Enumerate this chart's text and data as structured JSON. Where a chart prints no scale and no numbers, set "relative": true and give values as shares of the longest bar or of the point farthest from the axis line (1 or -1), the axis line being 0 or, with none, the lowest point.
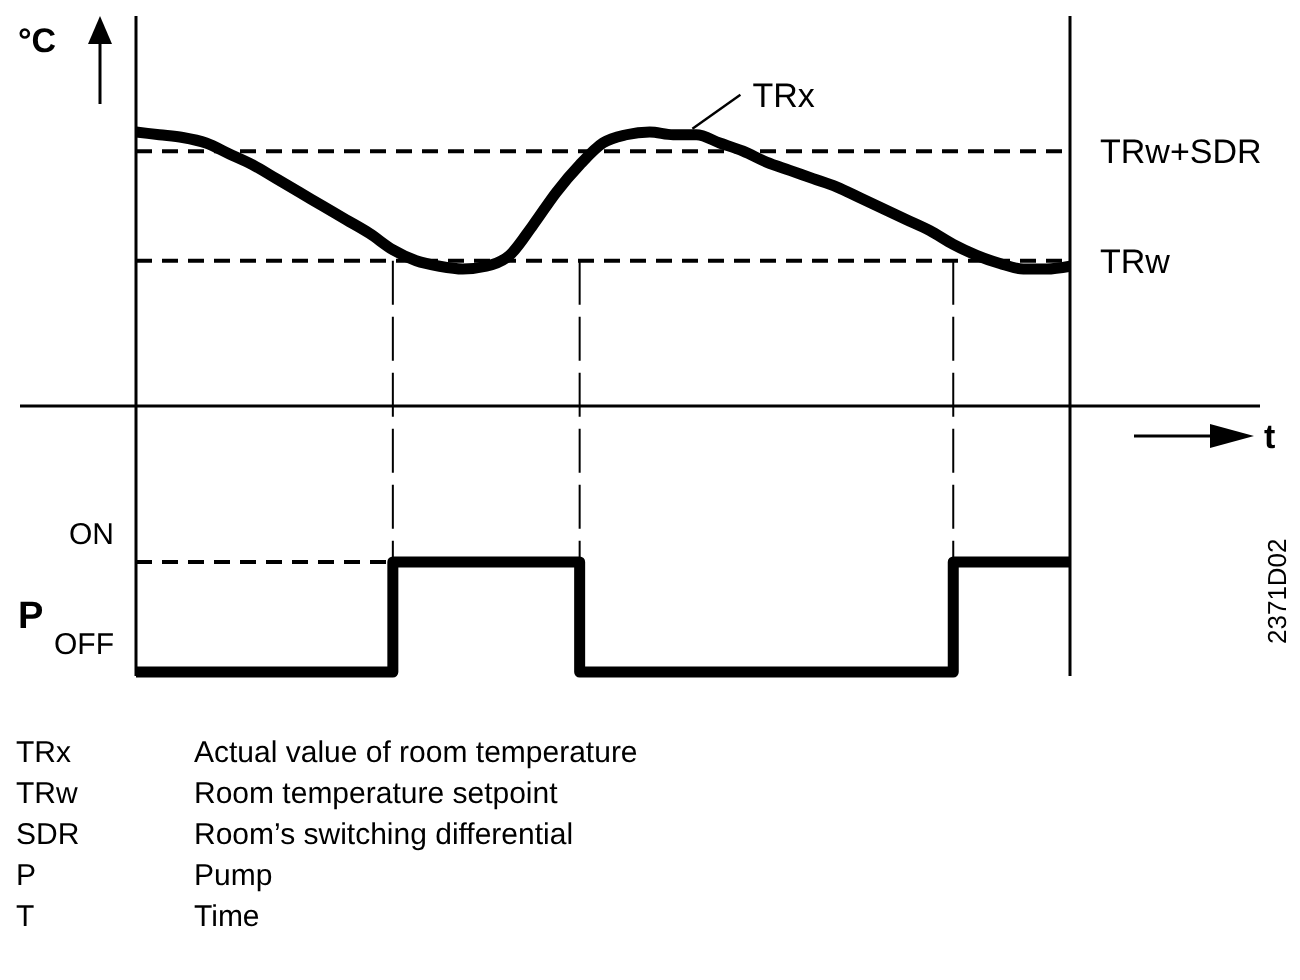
{
  "chart_data": [
    {
      "type": "line",
      "relative": true,
      "xlabel": "t",
      "ylabel": "°C",
      "categories": [
        null,
        null,
        null,
        null,
        null,
        null,
        null,
        null,
        null,
        null,
        null,
        null,
        null,
        null,
        null,
        null,
        null,
        null,
        null,
        null,
        null,
        null,
        null,
        null,
        null,
        null,
        null,
        null,
        null,
        null,
        null,
        null,
        null,
        null,
        null,
        null,
        null,
        null,
        null,
        null,
        null
      ],
      "series": [
        {
          "name": "TRx",
          "color": "#000000",
          "values": [
            1,
            0.99,
            0.98,
            0.96,
            0.92,
            0.88,
            0.83,
            0.78,
            0.73,
            0.68,
            0.63,
            0.57,
            0.53,
            0.51,
            0.5,
            0.51,
            0.55,
            0.66,
            0.78,
            0.88,
            0.96,
            0.99,
            1,
            0.99,
            0.99,
            0.96,
            0.93,
            0.89,
            0.86,
            0.83,
            0.8,
            0.76,
            0.72,
            0.68,
            0.64,
            0.59,
            0.55,
            0.52,
            0.5,
            0.5,
            0.51
          ]
        }
      ],
      "ref_lines": [
        {
          "axis": "y",
          "value": 0.93,
          "label": "TRw+SDR",
          "line_style": "dashed"
        },
        {
          "axis": "y",
          "value": 0.53,
          "label": "TRw",
          "line_style": "dashed"
        }
      ]
    },
    {
      "type": "step",
      "ylabel": "P",
      "relative": true,
      "categories": [
        null,
        null,
        null,
        null,
        null,
        null,
        null,
        null,
        null,
        null,
        null,
        null,
        null,
        null,
        null,
        null,
        null,
        null,
        null,
        null,
        null,
        null,
        null,
        null,
        null,
        null,
        null,
        null,
        null,
        null,
        null,
        null,
        null,
        null,
        null,
        null,
        null,
        null,
        null,
        null,
        null
      ],
      "series": [
        {
          "color": "#000000",
          "values": [
            0,
            0,
            0,
            0,
            0,
            0,
            0,
            0,
            0,
            0,
            0,
            1,
            1,
            1,
            1,
            1,
            1,
            1,
            1,
            0,
            0,
            0,
            0,
            0,
            0,
            0,
            0,
            0,
            0,
            0,
            0,
            0,
            0,
            0,
            0,
            1,
            1,
            1,
            1,
            1,
            1
          ]
        }
      ],
      "ref_lines": [
        {
          "axis": "y",
          "value": 1,
          "line_style": "dashed"
        }
      ],
      "annotations": [
        "ON",
        "OFF",
        "2371D02",
        "TRx",
        "Actual value of room temperature",
        "TRw",
        "Room temperature setpoint",
        "SDR",
        "Room’s switching differential",
        "P",
        "Pump",
        "T",
        "Time"
      ]
    }
  ]
}
